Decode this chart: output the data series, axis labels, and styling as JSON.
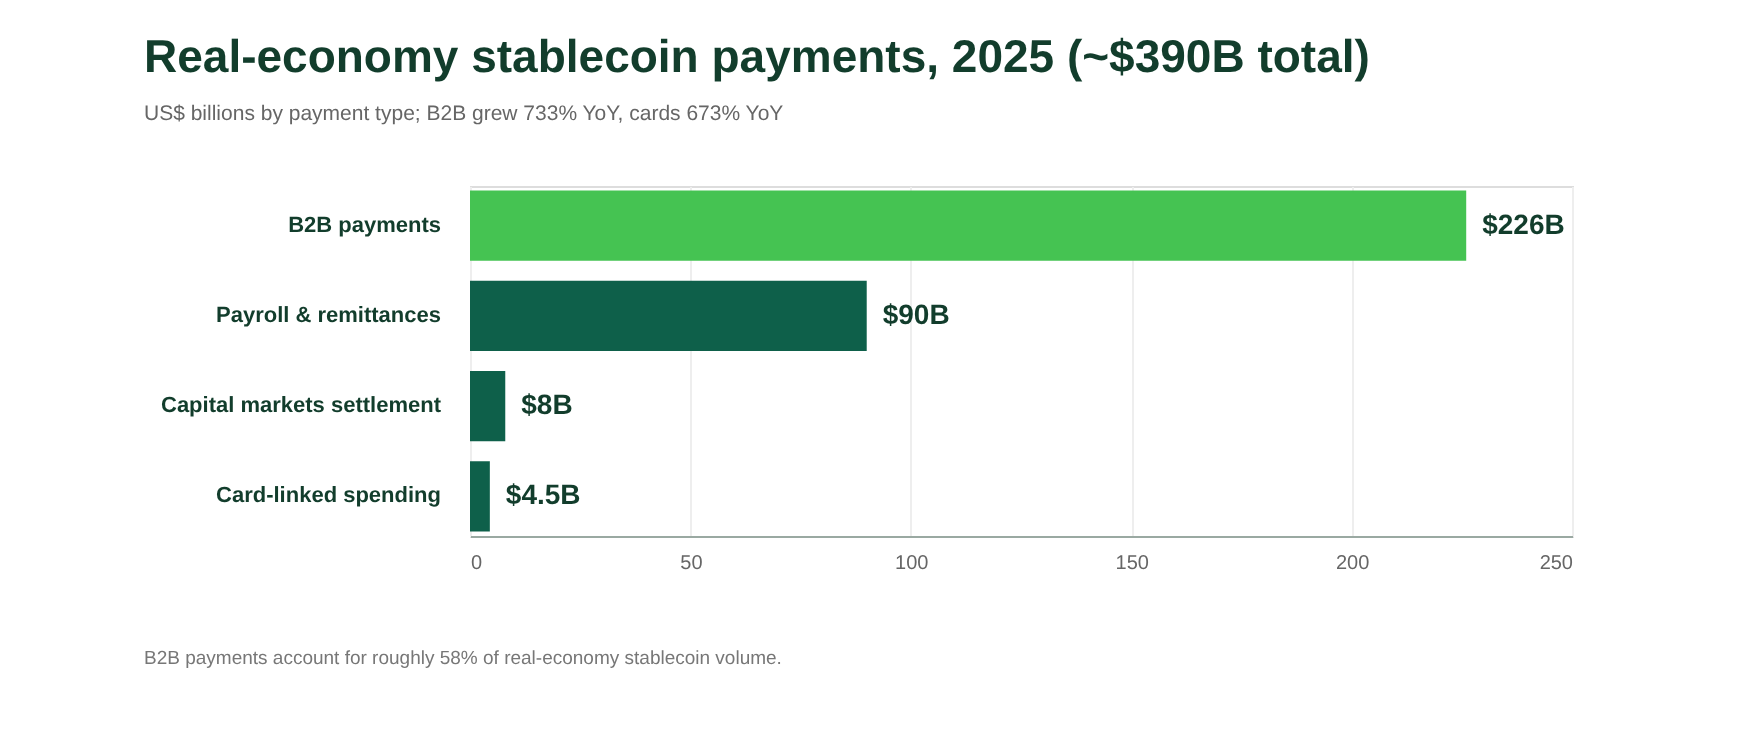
{
  "chart_data": {
    "type": "bar",
    "orientation": "horizontal",
    "title": "Real-economy stablecoin payments, 2025 (~$390B total)",
    "subtitle": "US$ billions by payment type; B2B grew 733% YoY, cards 673% YoY",
    "categories": [
      "B2B payments",
      "Payroll & remittances",
      "Capital markets settlement",
      "Card-linked spending"
    ],
    "values": [
      226,
      90,
      8,
      4.5
    ],
    "colors": [
      "#45c352",
      "#0e604a",
      "#0e604a",
      "#0e604a"
    ],
    "value_labels": [
      "$226B",
      "$90B",
      "$8B",
      "$4.5B"
    ],
    "xlim": [
      0,
      250
    ],
    "xticks": [
      0,
      50,
      100,
      150,
      200,
      250
    ],
    "grid": "x",
    "annotations": [
      "B2B payments account for roughly 58% of real-economy stablecoin volume."
    ]
  }
}
